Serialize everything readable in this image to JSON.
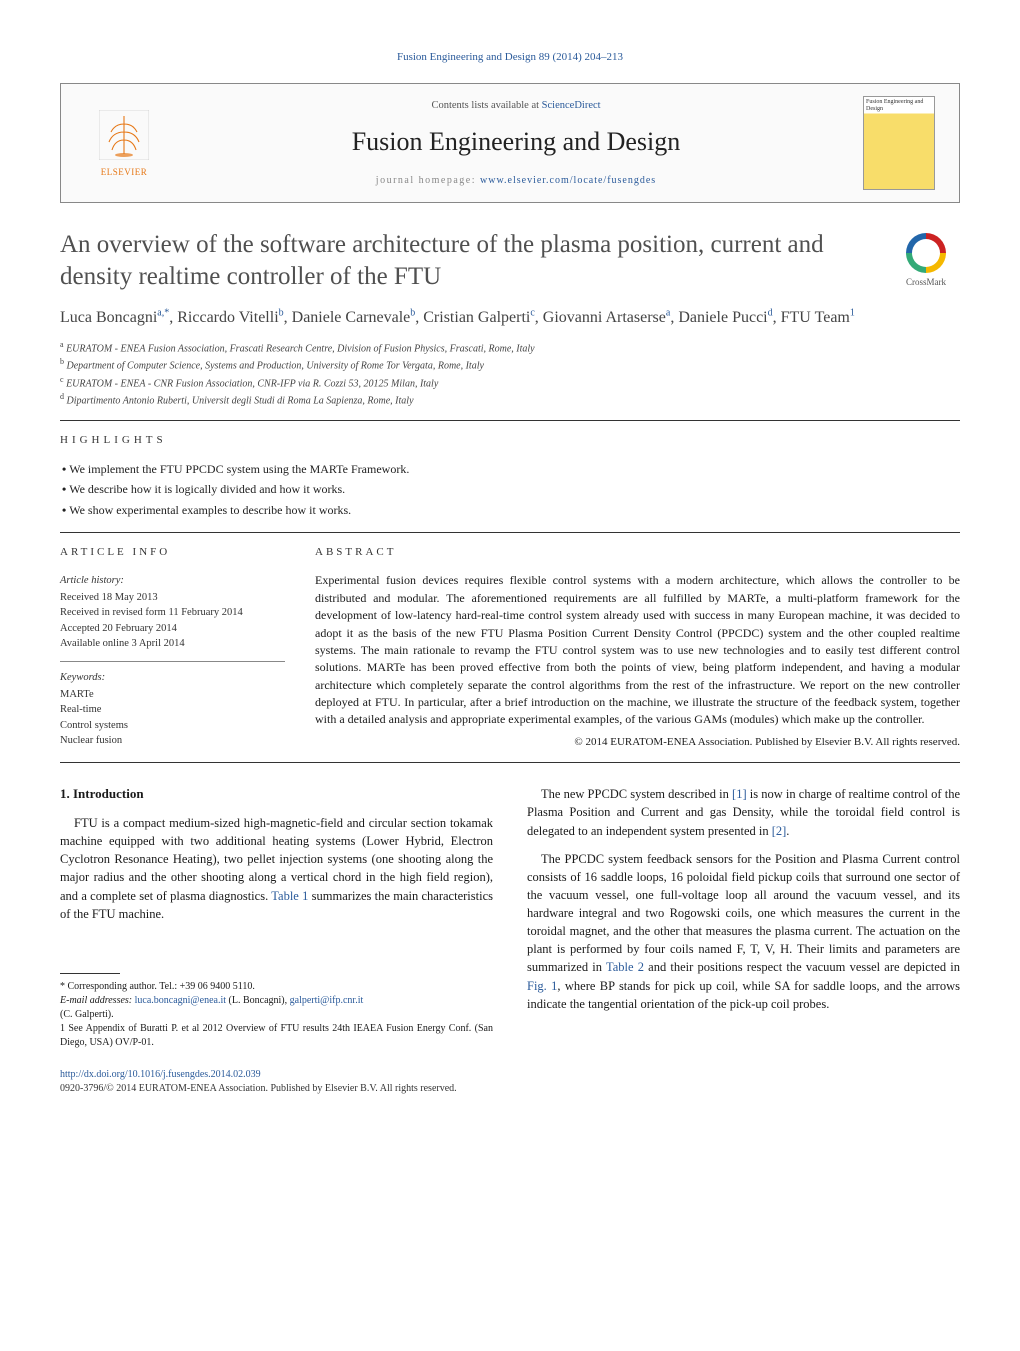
{
  "journal_ref": "Fusion Engineering and Design 89 (2014) 204–213",
  "header": {
    "contents_prefix": "Contents lists available at ",
    "contents_link": "ScienceDirect",
    "journal_title": "Fusion Engineering and Design",
    "homepage_prefix": "journal homepage: ",
    "homepage_link": "www.elsevier.com/locate/fusengdes",
    "publisher_name": "ELSEVIER",
    "cover_text_top": "Fusion Engineering and Design"
  },
  "crossmark_label": "CrossMark",
  "title": "An overview of the software architecture of the plasma position, current and density realtime controller of the FTU",
  "authors_html": "Luca Boncagni<sup>a,*</sup>, Riccardo Vitelli<sup>b</sup>, Daniele Carnevale<sup>b</sup>, Cristian Galperti<sup>c</sup>, Giovanni Artaserse<sup>a</sup>, Daniele Pucci<sup>d</sup>, FTU Team<sup>1</sup>",
  "affiliations": [
    "a EURATOM - ENEA Fusion Association, Frascati Research Centre, Division of Fusion Physics, Frascati, Rome, Italy",
    "b Department of Computer Science, Systems and Production, University of Rome Tor Vergata, Rome, Italy",
    "c EURATOM - ENEA - CNR Fusion Association, CNR-IFP via R. Cozzi 53, 20125 Milan, Italy",
    "d Dipartimento Antonio Ruberti, Universit degli Studi di Roma La Sapienza, Rome, Italy"
  ],
  "highlights_label": "HIGHLIGHTS",
  "highlights": [
    "We implement the FTU PPCDC system using the MARTe Framework.",
    "We describe how it is logically divided and how it works.",
    "We show experimental examples to describe how it works."
  ],
  "article_info_label": "ARTICLE INFO",
  "article_info": {
    "history_head": "Article history:",
    "received": "Received 18 May 2013",
    "revised": "Received in revised form 11 February 2014",
    "accepted": "Accepted 20 February 2014",
    "online": "Available online 3 April 2014",
    "keywords_head": "Keywords:",
    "keywords": [
      "MARTe",
      "Real-time",
      "Control systems",
      "Nuclear fusion"
    ]
  },
  "abstract_label": "ABSTRACT",
  "abstract": "Experimental fusion devices requires flexible control systems with a modern architecture, which allows the controller to be distributed and modular. The aforementioned requirements are all fulfilled by MARTe, a multi-platform framework for the development of low-latency hard-real-time control system already used with success in many European machine, it was decided to adopt it as the basis of the new FTU Plasma Position Current Density Control (PPCDC) system and the other coupled realtime systems. The main rationale to revamp the FTU control system was to use new technologies and to easily test different control solutions. MARTe has been proved effective from both the points of view, being platform independent, and having a modular architecture which completely separate the control algorithms from the rest of the infrastructure. We report on the new controller deployed at FTU. In particular, after a brief introduction on the machine, we illustrate the structure of the feedback system, together with a detailed analysis and appropriate experimental examples, of the various GAMs (modules) which make up the controller.",
  "copyright": "© 2014 EURATOM-ENEA Association. Published by Elsevier B.V. All rights reserved.",
  "intro_heading": "1. Introduction",
  "intro_p1": "FTU is a compact medium-sized high-magnetic-field and circular section tokamak machine equipped with two additional heating systems (Lower Hybrid, Electron Cyclotron Resonance Heating), two pellet injection systems (one shooting along the major radius and the other shooting along a vertical chord in the high field region), and a complete set of plasma diagnostics. ",
  "intro_p1_link": "Table 1",
  "intro_p1_tail": " summarizes the main characteristics of the FTU machine.",
  "col2_p1_a": "The new PPCDC system described in ",
  "col2_p1_ref1": "[1]",
  "col2_p1_b": " is now in charge of realtime control of the Plasma Position and Current and gas Density, while the toroidal field control is delegated to an independent system presented in ",
  "col2_p1_ref2": "[2]",
  "col2_p1_c": ".",
  "col2_p2_a": "The PPCDC system feedback sensors for the Position and Plasma Current control consists of 16 saddle loops, 16 poloidal field pickup coils that surround one sector of the vacuum vessel, one full-voltage loop all around the vacuum vessel, and its hardware integral and two Rogowski coils, one which measures the current in the toroidal magnet, and the other that measures the plasma current. The actuation on the plant is performed by four coils named F, T, V, H. Their limits and parameters are summarized in ",
  "col2_p2_link1": "Table 2",
  "col2_p2_b": " and their positions respect the vacuum vessel are depicted in ",
  "col2_p2_link2": "Fig. 1",
  "col2_p2_c": ", where BP stands for pick up coil, while SA for saddle loops, and the arrows indicate the tangential orientation of the pick-up coil probes.",
  "footnotes": {
    "corr": "* Corresponding author. Tel.: +39 06 9400 5110.",
    "email_label": "E-mail addresses: ",
    "email1": "luca.boncagni@enea.it",
    "email1_who": " (L. Boncagni), ",
    "email2": "galperti@ifp.cnr.it",
    "email2_who": " (C. Galperti).",
    "note1": "1 See Appendix of Buratti P. et al 2012 Overview of FTU results 24th IEAEA Fusion Energy Conf. (San Diego, USA) OV/P-01."
  },
  "doi": {
    "url": "http://dx.doi.org/10.1016/j.fusengdes.2014.02.039",
    "issn_line": "0920-3796/© 2014 EURATOM-ENEA Association. Published by Elsevier B.V. All rights reserved."
  },
  "colors": {
    "link": "#2a5a9a",
    "publisher": "#e67817",
    "text": "#1a1a1a",
    "muted": "#555555"
  }
}
